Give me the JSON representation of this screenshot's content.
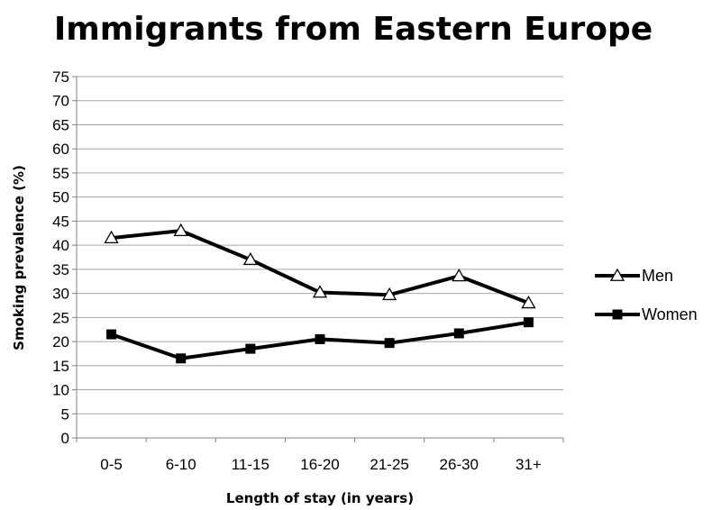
{
  "chart_data": {
    "type": "line",
    "title": "Immigrants from Eastern Europe",
    "xlabel": "Length of stay (in years)",
    "ylabel": "Smoking prevalence (%)",
    "categories": [
      "0-5",
      "6-10",
      "11-15",
      "16-20",
      "21-25",
      "26-30",
      "31+"
    ],
    "ylim": [
      0,
      75
    ],
    "ytick_step": 5,
    "grid": true,
    "legend_position": "right",
    "series": [
      {
        "name": "Men",
        "marker": "triangle-open",
        "color": "#000000",
        "values": [
          41.5,
          43,
          37,
          30.2,
          29.7,
          33.6,
          28
        ]
      },
      {
        "name": "Women",
        "marker": "square-filled",
        "color": "#000000",
        "values": [
          21.5,
          16.5,
          18.5,
          20.5,
          19.7,
          21.7,
          24
        ]
      }
    ]
  }
}
